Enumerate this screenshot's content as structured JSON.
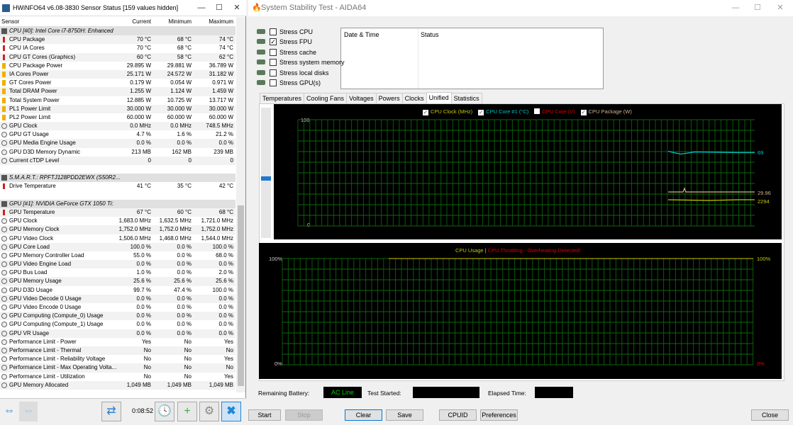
{
  "hwinfo": {
    "title": "HWiNFO64 v6.08-3830 Sensor Status [159 values hidden]",
    "columns": [
      "Sensor",
      "Current",
      "Minimum",
      "Maximum"
    ],
    "rows": [
      {
        "type": "group",
        "name": "CPU [#0]: Intel Core i7-8750H: Enhanced"
      },
      {
        "icon": "thermometer",
        "name": "CPU Package",
        "cur": "70 °C",
        "min": "68 °C",
        "max": "74 °C"
      },
      {
        "icon": "thermometer",
        "name": "CPU IA Cores",
        "cur": "70 °C",
        "min": "68 °C",
        "max": "74 °C"
      },
      {
        "icon": "thermometer",
        "name": "CPU GT Cores (Graphics)",
        "cur": "60 °C",
        "min": "58 °C",
        "max": "62 °C"
      },
      {
        "icon": "power",
        "name": "CPU Package Power",
        "cur": "29.895 W",
        "min": "29.881 W",
        "max": "36.789 W"
      },
      {
        "icon": "power",
        "name": "IA Cores Power",
        "cur": "25.171 W",
        "min": "24.572 W",
        "max": "31.182 W"
      },
      {
        "icon": "power",
        "name": "GT Cores Power",
        "cur": "0.179 W",
        "min": "0.054 W",
        "max": "0.971 W"
      },
      {
        "icon": "power",
        "name": "Total DRAM Power",
        "cur": "1.255 W",
        "min": "1.124 W",
        "max": "1.459 W"
      },
      {
        "icon": "power",
        "name": "Total System Power",
        "cur": "12.885 W",
        "min": "10.725 W",
        "max": "13.717 W"
      },
      {
        "icon": "power",
        "name": "PL1 Power Limit",
        "cur": "30.000 W",
        "min": "30.000 W",
        "max": "30.000 W"
      },
      {
        "icon": "power",
        "name": "PL2 Power Limit",
        "cur": "60.000 W",
        "min": "60.000 W",
        "max": "60.000 W"
      },
      {
        "icon": "gauge",
        "name": "GPU Clock",
        "cur": "0.0 MHz",
        "min": "0.0 MHz",
        "max": "748.5 MHz"
      },
      {
        "icon": "gauge",
        "name": "GPU GT Usage",
        "cur": "4.7 %",
        "min": "1.6 %",
        "max": "21.2 %"
      },
      {
        "icon": "gauge",
        "name": "GPU Media Engine Usage",
        "cur": "0.0 %",
        "min": "0.0 %",
        "max": "0.0 %"
      },
      {
        "icon": "gauge",
        "name": "GPU D3D Memory Dynamic",
        "cur": "213 MB",
        "min": "162 MB",
        "max": "239 MB"
      },
      {
        "icon": "gauge",
        "name": "Current cTDP Level",
        "cur": "0",
        "min": "0",
        "max": "0"
      },
      {
        "type": "blank"
      },
      {
        "type": "group",
        "name": "S.M.A.R.T.: RPFTJ128PDD2EWX (S50R2..."
      },
      {
        "icon": "thermometer",
        "name": "Drive Temperature",
        "cur": "41 °C",
        "min": "35 °C",
        "max": "42 °C"
      },
      {
        "type": "blank"
      },
      {
        "type": "group",
        "name": "GPU [#1]: NVIDIA GeForce GTX 1050 Ti:"
      },
      {
        "icon": "thermometer",
        "name": "GPU Temperature",
        "cur": "67 °C",
        "min": "60 °C",
        "max": "68 °C"
      },
      {
        "icon": "gauge",
        "name": "GPU Clock",
        "cur": "1,683.0 MHz",
        "min": "1,632.5 MHz",
        "max": "1,721.0 MHz"
      },
      {
        "icon": "gauge",
        "name": "GPU Memory Clock",
        "cur": "1,752.0 MHz",
        "min": "1,752.0 MHz",
        "max": "1,752.0 MHz"
      },
      {
        "icon": "gauge",
        "name": "GPU Video Clock",
        "cur": "1,506.0 MHz",
        "min": "1,468.0 MHz",
        "max": "1,544.0 MHz"
      },
      {
        "icon": "gauge",
        "name": "GPU Core Load",
        "cur": "100.0 %",
        "min": "0.0 %",
        "max": "100.0 %"
      },
      {
        "icon": "gauge",
        "name": "GPU Memory Controller Load",
        "cur": "55.0 %",
        "min": "0.0 %",
        "max": "68.0 %"
      },
      {
        "icon": "gauge",
        "name": "GPU Video Engine Load",
        "cur": "0.0 %",
        "min": "0.0 %",
        "max": "0.0 %"
      },
      {
        "icon": "gauge",
        "name": "GPU Bus Load",
        "cur": "1.0 %",
        "min": "0.0 %",
        "max": "2.0 %"
      },
      {
        "icon": "gauge",
        "name": "GPU Memory Usage",
        "cur": "25.6 %",
        "min": "25.6 %",
        "max": "25.6 %"
      },
      {
        "icon": "gauge",
        "name": "GPU D3D Usage",
        "cur": "99.7 %",
        "min": "47.4 %",
        "max": "100.0 %"
      },
      {
        "icon": "gauge",
        "name": "GPU Video Decode 0 Usage",
        "cur": "0.0 %",
        "min": "0.0 %",
        "max": "0.0 %"
      },
      {
        "icon": "gauge",
        "name": "GPU Video Encode 0 Usage",
        "cur": "0.0 %",
        "min": "0.0 %",
        "max": "0.0 %"
      },
      {
        "icon": "gauge",
        "name": "GPU Computing (Compute_0) Usage",
        "cur": "0.0 %",
        "min": "0.0 %",
        "max": "0.0 %"
      },
      {
        "icon": "gauge",
        "name": "GPU Computing (Compute_1) Usage",
        "cur": "0.0 %",
        "min": "0.0 %",
        "max": "0.0 %"
      },
      {
        "icon": "gauge",
        "name": "GPU VR Usage",
        "cur": "0.0 %",
        "min": "0.0 %",
        "max": "0.0 %"
      },
      {
        "icon": "gauge",
        "name": "Performance Limit - Power",
        "cur": "Yes",
        "min": "No",
        "max": "Yes"
      },
      {
        "icon": "gauge",
        "name": "Performance Limit - Thermal",
        "cur": "No",
        "min": "No",
        "max": "No"
      },
      {
        "icon": "gauge",
        "name": "Performance Limit - Reliability Voltage",
        "cur": "No",
        "min": "No",
        "max": "Yes"
      },
      {
        "icon": "gauge",
        "name": "Performance Limit - Max Operating Volta...",
        "cur": "No",
        "min": "No",
        "max": "No"
      },
      {
        "icon": "gauge",
        "name": "Performance Limit - Utilization",
        "cur": "No",
        "min": "No",
        "max": "Yes"
      },
      {
        "icon": "gauge",
        "name": "GPU Memory Allocated",
        "cur": "1,049 MB",
        "min": "1,049 MB",
        "max": "1,049 MB"
      }
    ],
    "timer": "0:08:52"
  },
  "aida": {
    "title": "System Stability Test - AIDA64",
    "stress": [
      {
        "label": "Stress CPU",
        "checked": false
      },
      {
        "label": "Stress FPU",
        "checked": true
      },
      {
        "label": "Stress cache",
        "checked": false
      },
      {
        "label": "Stress system memory",
        "checked": false
      },
      {
        "label": "Stress local disks",
        "checked": false
      },
      {
        "label": "Stress GPU(s)",
        "checked": false
      }
    ],
    "log_headers": {
      "date": "Date & Time",
      "status": "Status"
    },
    "tabs": [
      "Temperatures",
      "Cooling Fans",
      "Voltages",
      "Powers",
      "Clocks",
      "Unified",
      "Statistics"
    ],
    "active_tab": "Unified",
    "chart_top": {
      "legend": [
        {
          "label": "CPU Clock (MHz)",
          "checked": true,
          "color": "#c8c800"
        },
        {
          "label": "CPU Core #1 (°C)",
          "checked": true,
          "color": "#00c8c8"
        },
        {
          "label": "CPU Core (V)",
          "checked": false,
          "color": "#e00000"
        },
        {
          "label": "CPU Package (W)",
          "checked": true,
          "color": "#d2b48c"
        }
      ],
      "ymax": "100",
      "ymin": "0",
      "values": {
        "core_temp": "69",
        "package_power": "29.96",
        "clock": "2294"
      }
    },
    "chart_bottom": {
      "title": "CPU Usage",
      "sep": "|",
      "throttle": "CPU Throttling - Overheating Detected!",
      "ymax": "100%",
      "ymin": "0%",
      "right_top": "100%",
      "right_bottom": "0%",
      "usage_percent": 100
    },
    "footer": {
      "battery_label": "Remaining Battery:",
      "battery_value": "AC Line",
      "started_label": "Test Started:",
      "elapsed_label": "Elapsed Time:"
    },
    "buttons": {
      "start": "Start",
      "stop": "Stop",
      "clear": "Clear",
      "save": "Save",
      "cpuid": "CPUID",
      "prefs": "Preferences",
      "close": "Close"
    }
  }
}
